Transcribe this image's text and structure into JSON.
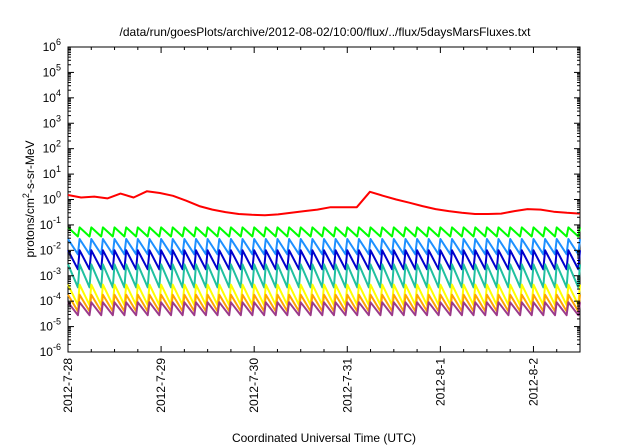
{
  "chart_data": {
    "type": "line",
    "title": "/data/run/goesPlots/archive/2012-08-02/10:00/flux/../flux/5daysMarsFluxes.txt",
    "xlabel": "Coordinated Universal Time (UTC)",
    "ylabel": {
      "base": "protons/cm",
      "sup": "2",
      "rest": "-s-sr-MeV"
    },
    "x_scale": "time",
    "y_scale": "log",
    "xlim": [
      "2012-07-28T00:00",
      "2012-08-02T12:00"
    ],
    "ylim": [
      1e-06,
      1000000.0
    ],
    "x_ticks": [
      "2012-7-28",
      "2012-7-29",
      "2012-7-30",
      "2012-7-31",
      "2012-8-1",
      "2012-8-2"
    ],
    "y_tick_exponents": [
      -6,
      -5,
      -4,
      -3,
      -2,
      -1,
      0,
      1,
      2,
      3,
      4,
      5,
      6
    ],
    "y_tick_base": "10",
    "grid": false,
    "legend": "none",
    "series": [
      {
        "color": "#ff0000",
        "values": [
          1.5,
          1.2,
          1.3,
          1.1,
          1.7,
          1.2,
          2.1,
          1.8,
          1.4,
          0.9,
          0.55,
          0.4,
          0.32,
          0.27,
          0.25,
          0.24,
          0.26,
          0.3,
          0.35,
          0.4,
          0.5,
          0.5,
          0.5,
          2.0,
          1.4,
          1.0,
          0.75,
          0.55,
          0.42,
          0.35,
          0.3,
          0.27,
          0.27,
          0.28,
          0.35,
          0.42,
          0.4,
          0.33,
          0.3,
          0.28
        ]
      },
      {
        "color": "#00ff00",
        "sawtooth": {
          "teeth": 44,
          "peak": 0.08,
          "trough": 0.035
        }
      },
      {
        "color": "#1e90ff",
        "sawtooth": {
          "teeth": 44,
          "peak": 0.028,
          "trough": 0.007
        }
      },
      {
        "color": "#0000cd",
        "sawtooth": {
          "teeth": 44,
          "peak": 0.01,
          "trough": 0.0018
        }
      },
      {
        "color": "#20c0a0",
        "sawtooth": {
          "teeth": 44,
          "peak": 0.0028,
          "trough": 0.00035
        }
      },
      {
        "color": "#ffff00",
        "sawtooth": {
          "teeth": 44,
          "peak": 0.00045,
          "trough": 7e-05
        }
      },
      {
        "color": "#ffa500",
        "sawtooth": {
          "teeth": 44,
          "peak": 0.00018,
          "trough": 4e-05
        }
      },
      {
        "color": "#9b3a8a",
        "sawtooth": {
          "teeth": 44,
          "peak": 9e-05,
          "trough": 2.8e-05
        }
      }
    ]
  }
}
